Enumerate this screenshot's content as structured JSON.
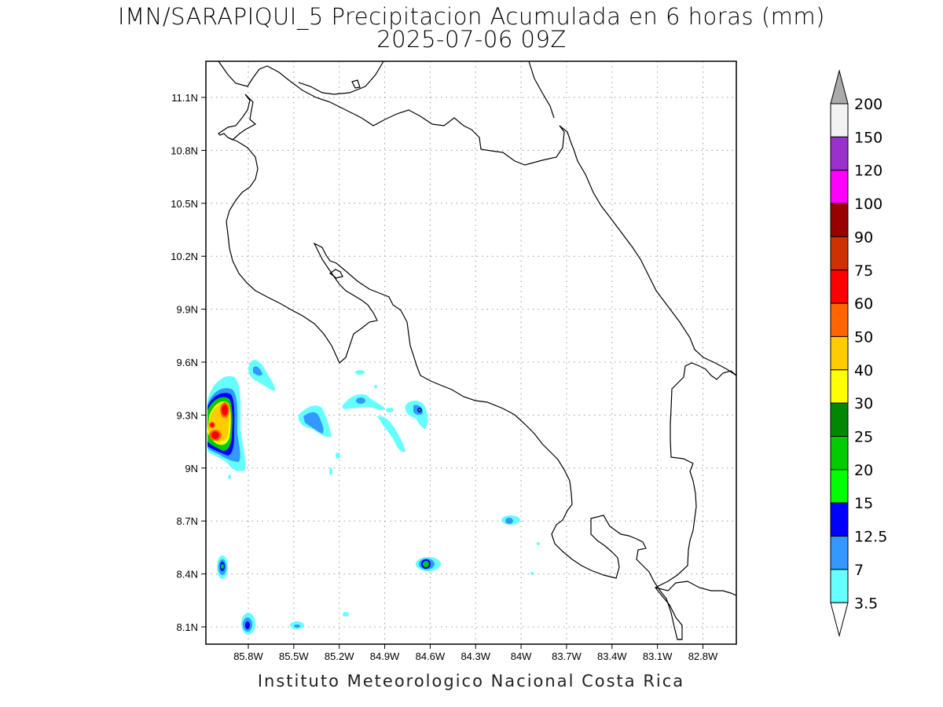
{
  "title": {
    "line1": "IMN/SARAPIQUI_5 Precipitacion Acumulada en 6 horas (mm)",
    "line2": "2025-07-06 09Z"
  },
  "footer": "Instituto Meteorologico Nacional Costa Rica",
  "map": {
    "lon_range": [
      -86.06,
      -82.32
    ],
    "lat_range": [
      8.02,
      11.3
    ],
    "x_ticks": [
      "85.8W",
      "85.5W",
      "85.2W",
      "84.9W",
      "84.6W",
      "84.3W",
      "84W",
      "83.7W",
      "83.4W",
      "83.1W",
      "82.8W"
    ],
    "y_ticks": [
      "11.1N",
      "10.8N",
      "10.5N",
      "10.2N",
      "9.9N",
      "9.6N",
      "9.3N",
      "9N",
      "8.7N",
      "8.4N",
      "8.1N"
    ],
    "grid": true
  },
  "colorbar": {
    "levels": [
      "200",
      "150",
      "120",
      "100",
      "90",
      "75",
      "60",
      "50",
      "40",
      "30",
      "25",
      "20",
      "15",
      "12.5",
      "7",
      "3.5"
    ],
    "colors": [
      "#f2f2f2",
      "#9932cc",
      "#ff00ff",
      "#990000",
      "#cc3300",
      "#ff0000",
      "#ff6600",
      "#ffcc00",
      "#ffff00",
      "#008800",
      "#00cc00",
      "#00ff00",
      "#0000ff",
      "#3399ff",
      "#66ffff"
    ],
    "top_arrow_color": "#aaaaaa",
    "bottom_arrow_color": "#ffffff"
  }
}
